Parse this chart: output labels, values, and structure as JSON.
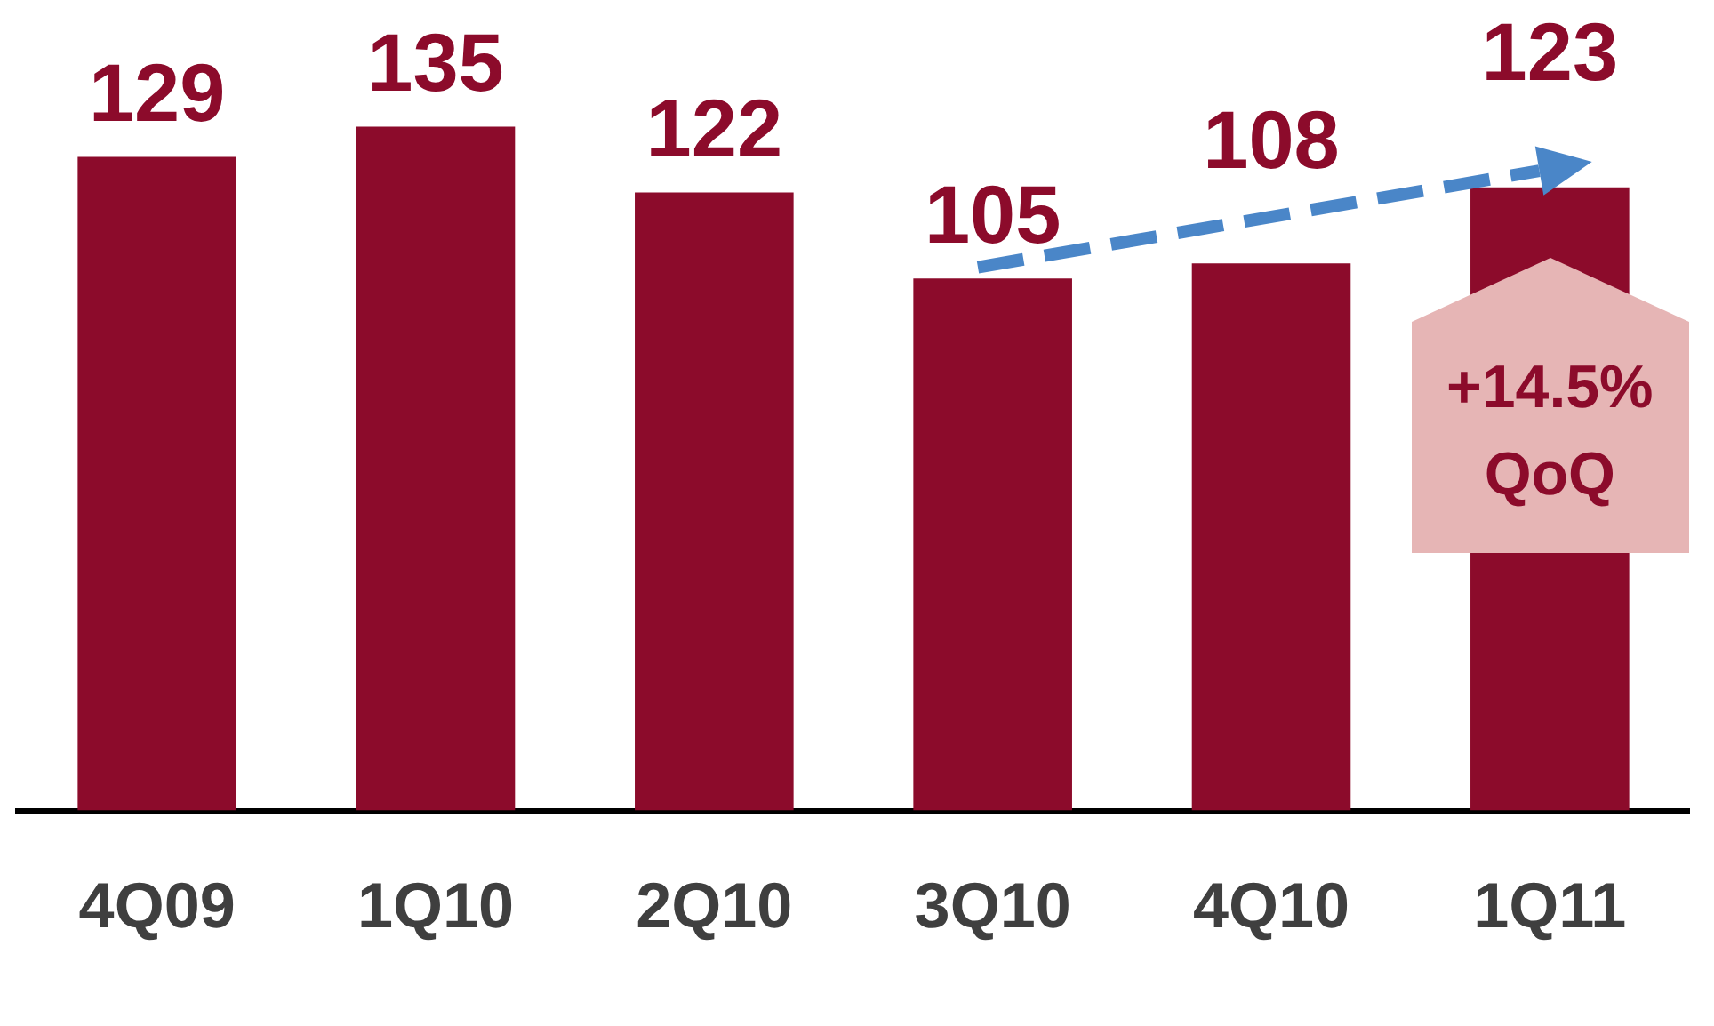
{
  "chart_data": {
    "type": "bar",
    "categories": [
      "4Q09",
      "1Q10",
      "2Q10",
      "3Q10",
      "4Q10",
      "1Q11"
    ],
    "values": [
      129,
      135,
      122,
      105,
      108,
      123
    ],
    "color": "#8c0b2b",
    "data_labels": true,
    "grid": false,
    "legend": false,
    "tick_labels": "x",
    "annotations": [
      "+14.5% QoQ"
    ]
  }
}
